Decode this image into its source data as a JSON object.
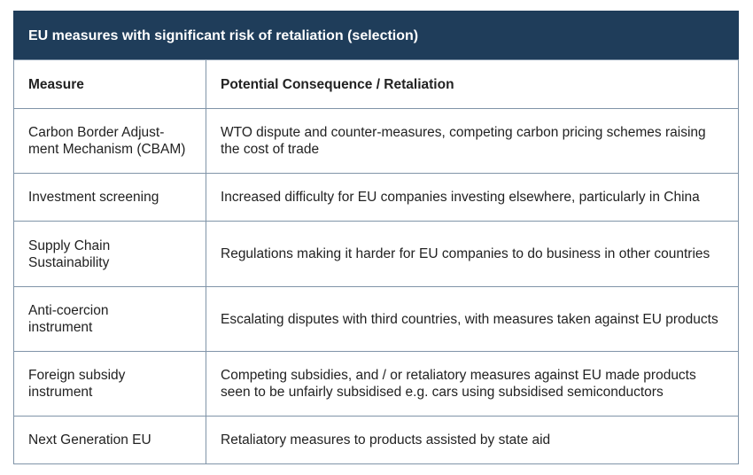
{
  "title": "EU measures with significant risk of retaliation (selection)",
  "headers": [
    "Measure",
    "Potential Consequence / Retaliation"
  ],
  "rows": [
    {
      "measure": "Carbon Border Adjust-\nment Mechanism (CBAM)",
      "consequence": "WTO dispute and counter-measures, competing carbon pricing schemes raising the cost of trade"
    },
    {
      "measure": "Investment screening",
      "consequence": "Increased difficulty for EU companies investing elsewhere, particularly in China"
    },
    {
      "measure": "Supply Chain Sustainability",
      "consequence": "Regulations making it harder for EU companies to do business in other countries"
    },
    {
      "measure": "Anti-coercion instrument",
      "consequence": "Escalating disputes with third countries, with measures taken against EU products"
    },
    {
      "measure": "Foreign subsidy instrument",
      "consequence": "Competing subsidies, and / or retaliatory measures against EU made products seen to be unfairly subsidised e.g. cars using subsidised semiconductors"
    },
    {
      "measure": "Next Generation EU",
      "consequence": "Retaliatory measures to products assisted by state aid"
    }
  ],
  "colors": {
    "header_bg": "#1f3d5a",
    "border": "#8094a8"
  }
}
